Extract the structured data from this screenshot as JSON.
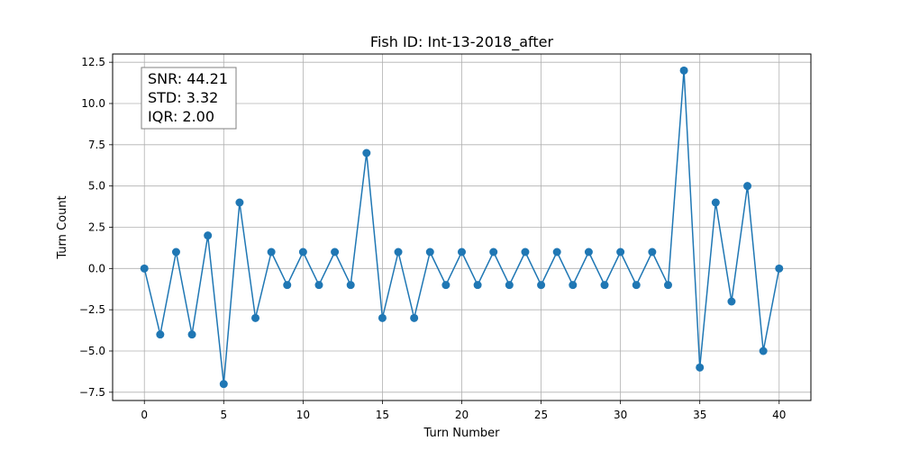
{
  "chart_data": {
    "type": "line",
    "title": "Fish ID: Int-13-2018_after",
    "xlabel": "Turn Number",
    "ylabel": "Turn Count",
    "xlim": [
      -2,
      42
    ],
    "ylim": [
      -8,
      13
    ],
    "xticks": [
      0,
      5,
      10,
      15,
      20,
      25,
      30,
      35,
      40
    ],
    "yticks": [
      -7.5,
      -5.0,
      -2.5,
      0.0,
      2.5,
      5.0,
      7.5,
      10.0,
      12.5
    ],
    "ytick_labels": [
      "−7.5",
      "−5.0",
      "−2.5",
      "0.0",
      "2.5",
      "5.0",
      "7.5",
      "10.0",
      "12.5"
    ],
    "grid": true,
    "series_color": "#1f77b4",
    "x": [
      0,
      1,
      2,
      3,
      4,
      5,
      6,
      7,
      8,
      9,
      10,
      11,
      12,
      13,
      14,
      15,
      16,
      17,
      18,
      19,
      20,
      21,
      22,
      23,
      24,
      25,
      26,
      27,
      28,
      29,
      30,
      31,
      32,
      33,
      34,
      35,
      36,
      37,
      38,
      39,
      40
    ],
    "values": [
      0,
      -4,
      1,
      -4,
      2,
      -7,
      4,
      -3,
      1,
      -1,
      1,
      -1,
      1,
      -1,
      7,
      -3,
      1,
      -3,
      1,
      -1,
      1,
      -1,
      1,
      -1,
      1,
      -1,
      1,
      -1,
      1,
      -1,
      1,
      -1,
      1,
      -1,
      12,
      -6,
      4,
      -2,
      5,
      -5,
      0
    ],
    "annotations": [
      "SNR: 44.21",
      "STD: 3.32",
      "IQR: 2.00"
    ]
  }
}
